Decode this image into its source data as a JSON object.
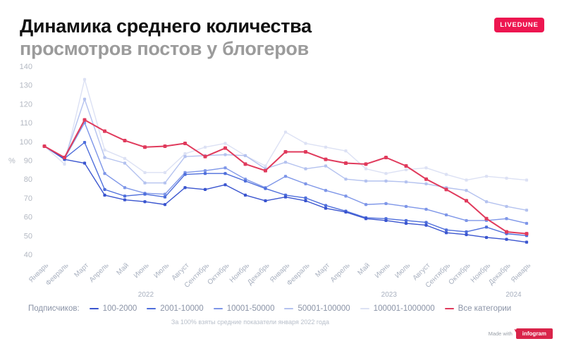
{
  "header": {
    "title": "Динамика среднего количества",
    "subtitle": "просмотров постов у блогеров",
    "brand": "LIVEDUNE",
    "brand_color": "#ed1650"
  },
  "legend": {
    "label": "Подписчиков:"
  },
  "footnote": "За 100% взяты средние показатели января 2022 года",
  "credit": {
    "made_with": "Made with",
    "logo": "infogram"
  },
  "chart_data": {
    "type": "line",
    "ylabel": "%",
    "ylim": [
      40,
      140
    ],
    "y_ticks": [
      140,
      130,
      120,
      110,
      100,
      90,
      80,
      70,
      60,
      50,
      40
    ],
    "grid": false,
    "legend_position": "bottom",
    "categories": [
      "Январь",
      "Февраль",
      "Март",
      "Апрель",
      "Май",
      "Июнь",
      "Июль",
      "Август",
      "Сентябрь",
      "Октябрь",
      "Ноябрь",
      "Декабрь",
      "Январь",
      "Февраль",
      "Март",
      "Апрель",
      "Май",
      "Июнь",
      "Июль",
      "Август",
      "Сентябрь",
      "Октябрь",
      "Ноябрь",
      "Декабрь",
      "Январь"
    ],
    "year_labels": [
      {
        "label": "2022",
        "month_index": 5.05
      },
      {
        "label": "2023",
        "month_index": 17.15
      },
      {
        "label": "2024",
        "month_index": 23.35
      }
    ],
    "series": [
      {
        "name": "100001-1000000",
        "color": "#dce1f4",
        "values": [
          97.5,
          88,
          133,
          95.5,
          91,
          83.5,
          83.5,
          93.5,
          97,
          99,
          92.5,
          87,
          105,
          99,
          97,
          95,
          85.5,
          83,
          85,
          86,
          82.5,
          79.5,
          81.5,
          80.5,
          79.5
        ]
      },
      {
        "name": "50001-100000",
        "color": "#b4c2ef",
        "values": [
          97.5,
          90.5,
          122.5,
          91.5,
          88.5,
          78,
          78,
          92,
          92.5,
          93,
          92.5,
          85.5,
          89,
          85.5,
          87,
          80,
          79,
          79,
          78.5,
          77.5,
          75.5,
          74,
          68,
          65.5,
          63.5
        ]
      },
      {
        "name": "10001-50000",
        "color": "#7e96e8",
        "values": [
          97.5,
          91,
          110,
          83,
          75.5,
          72.5,
          72,
          83.5,
          84.5,
          86,
          80,
          75.5,
          81.5,
          77.5,
          74,
          71,
          66.5,
          67,
          65.5,
          64,
          61,
          58,
          58,
          59,
          56.5
        ]
      },
      {
        "name": "2001-10000",
        "color": "#4e6edb",
        "values": [
          97.5,
          91,
          99.5,
          74.5,
          71,
          72,
          70.5,
          82.5,
          83,
          83,
          79,
          75,
          71.5,
          70,
          66,
          63,
          59.5,
          59,
          58,
          57,
          53,
          52,
          54.5,
          51,
          50
        ]
      },
      {
        "name": "100-2000",
        "color": "#3a55cf",
        "values": [
          97.5,
          90.5,
          88.5,
          71.5,
          69,
          68,
          66.5,
          75.5,
          74.5,
          77,
          71.5,
          68.5,
          70.5,
          68.5,
          64.5,
          62.5,
          59,
          58,
          56.5,
          55.5,
          51.5,
          50.5,
          49,
          48,
          46.5
        ]
      },
      {
        "name": "Все категории",
        "color": "#e03a5c",
        "values": [
          97.5,
          91.5,
          111.5,
          105.5,
          100.5,
          97,
          97.5,
          99,
          92,
          96.5,
          88,
          84.5,
          94.5,
          94.5,
          90.5,
          88.5,
          88,
          91.5,
          87,
          80,
          74.5,
          68.5,
          59,
          52,
          51
        ]
      }
    ],
    "legend_order": [
      4,
      3,
      2,
      1,
      0,
      5
    ]
  }
}
